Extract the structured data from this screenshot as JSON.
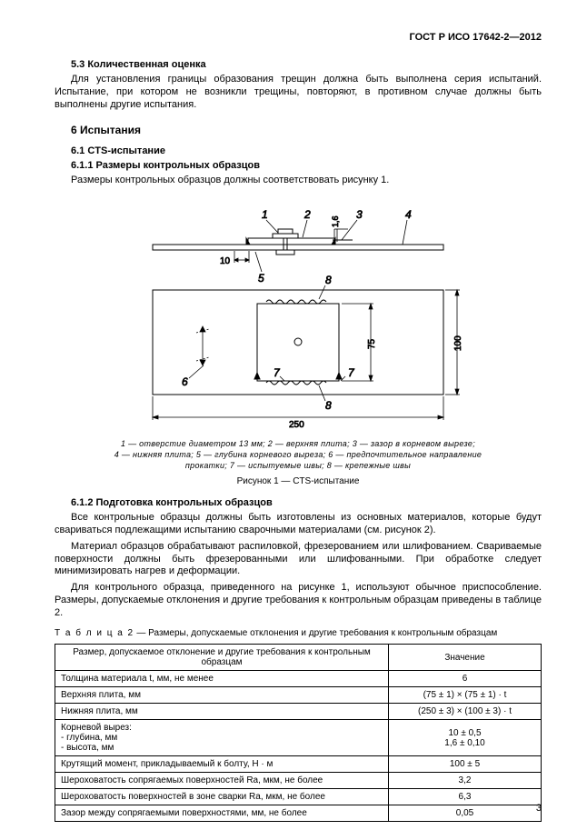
{
  "doc_id": "ГОСТ Р ИСО 17642-2—2012",
  "s53": {
    "title": "5.3 Количественная оценка",
    "p1": "Для установления границы образования трещин должна быть выполнена серия испытаний. Испытание, при котором не возникли трещины, повторяют, в противном случае должны быть выполнены другие испытания."
  },
  "s6": {
    "title": "6 Испытания"
  },
  "s61": {
    "title": "6.1 CTS-испытание"
  },
  "s611": {
    "title": "6.1.1 Размеры контрольных образцов",
    "p1": "Размеры контрольных образцов должны соответствовать рисунку 1."
  },
  "figure": {
    "labels": {
      "l1": "1",
      "l2": "2",
      "l3": "3",
      "l4": "4",
      "l5": "5",
      "l6": "6",
      "l7": "7",
      "l8": "8"
    },
    "dims": {
      "d10": "10",
      "d16": "1,6",
      "d75": "75",
      "d100": "100",
      "d250": "250"
    },
    "legend_line1": "1 — отверстие диаметром 13 мм; 2 — верхняя плита; 3 — зазор в корневом вырезе;",
    "legend_line2": "4 — нижняя плита; 5 — глубина корневого выреза; 6 — предпочтительное направление",
    "legend_line3": "прокатки; 7 — испытуемые швы; 8 — крепежные швы",
    "caption": "Рисунок 1 — CTS-испытание"
  },
  "s612": {
    "title": "6.1.2 Подготовка контрольных образцов",
    "p1": "Все контрольные образцы должны быть изготовлены из основных материалов, которые будут свариваться подлежащими испытанию сварочными материалами (см. рисунок 2).",
    "p2": "Материал образцов обрабатывают распиловкой, фрезерованием или шлифованием. Свариваемые поверхности должны быть фрезерованными или шлифованными. При обработке следует минимизировать нагрев и деформации.",
    "p3": "Для контрольного образца, приведенного на рисунке 1, используют обычное приспособление. Размеры, допускаемые отклонения и другие требования к контрольным образцам приведены в таблице 2."
  },
  "table": {
    "caption_prefix": "Т а б л и ц а  2",
    "caption_rest": " — Размеры, допускаемые отклонения и другие требования к контрольным образцам",
    "header_left": "Размер, допускаемое отклонение и другие требования к контрольным образцам",
    "header_right": "Значение",
    "rows": [
      {
        "name": "Толщина материала t, мм, не менее",
        "val": "6"
      },
      {
        "name": "Верхняя плита, мм",
        "val": "(75 ± 1) × (75 ± 1) · t"
      },
      {
        "name": "Нижняя плита, мм",
        "val": "(250 ± 3) × (100 ± 3) · t"
      },
      {
        "name": "Корневой вырез:\n   - глубина, мм\n   - высота, мм",
        "val": "10 ± 0,5\n1,6 ± 0,10"
      },
      {
        "name": "Крутящий момент, прикладываемый к болту, Н · м",
        "val": "100 ± 5"
      },
      {
        "name": "Шероховатость сопрягаемых поверхностей Ra, мкм, не более",
        "val": "3,2"
      },
      {
        "name": "Шероховатость поверхностей в зоне сварки Ra, мкм, не более",
        "val": "6,3"
      },
      {
        "name": "Зазор между сопрягаемыми поверхностями, мм, не более",
        "val": "0,05"
      }
    ]
  },
  "pagenum": "3"
}
